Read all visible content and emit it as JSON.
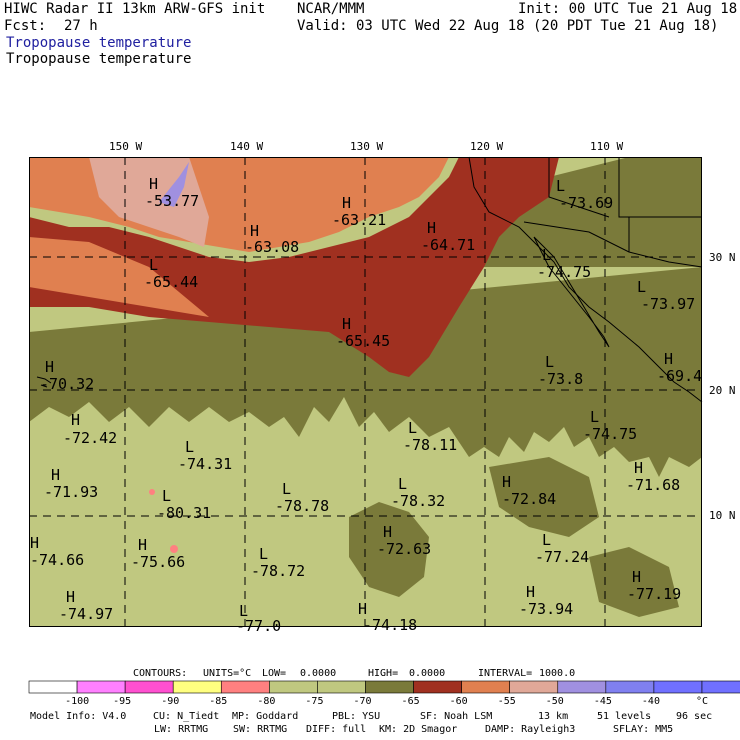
{
  "header": {
    "model_title": "HIWC Radar II 13km ARW-GFS init",
    "org": "NCAR/MMM",
    "init": "Init: 00 UTC Tue 21 Aug 18",
    "fcst_label": "Fcst:",
    "fcst_value": "27 h",
    "valid": "Valid: 03 UTC Wed 22 Aug 18 (20 PDT Tue 21 Aug 18)",
    "field_title_1": "Tropopause temperature",
    "field_title_2": "Tropopause temperature"
  },
  "map": {
    "lon_labels": [
      "150 W",
      "140 W",
      "130 W",
      "120 W",
      "110 W"
    ],
    "lat_labels": [
      "30 N",
      "20 N",
      "10 N"
    ],
    "extremes": [
      {
        "kind": "H",
        "value": "-53.77"
      },
      {
        "kind": "H",
        "value": "-63.21"
      },
      {
        "kind": "H",
        "value": "-63.08"
      },
      {
        "kind": "H",
        "value": "-64.71"
      },
      {
        "kind": "L",
        "value": "-73.69"
      },
      {
        "kind": "L",
        "value": "-65.44"
      },
      {
        "kind": "L",
        "value": "-74.75"
      },
      {
        "kind": "L",
        "value": "-73.97"
      },
      {
        "kind": "H",
        "value": "-65.45"
      },
      {
        "kind": "H",
        "value": "-70.32"
      },
      {
        "kind": "L",
        "value": "-73.8"
      },
      {
        "kind": "H",
        "value": "-69.4"
      },
      {
        "kind": "H",
        "value": "-72.42"
      },
      {
        "kind": "L",
        "value": "-78.11"
      },
      {
        "kind": "L",
        "value": "-74.75"
      },
      {
        "kind": "L",
        "value": "-74.31"
      },
      {
        "kind": "H",
        "value": "-71.68"
      },
      {
        "kind": "H",
        "value": "-71.93"
      },
      {
        "kind": "L",
        "value": "-78.78"
      },
      {
        "kind": "L",
        "value": "-78.32"
      },
      {
        "kind": "H",
        "value": "-72.84"
      },
      {
        "kind": "L",
        "value": "-80.31"
      },
      {
        "kind": "H",
        "value": "-72.63"
      },
      {
        "kind": "H",
        "value": "-74.66"
      },
      {
        "kind": "H",
        "value": "-75.66"
      },
      {
        "kind": "L",
        "value": "-78.72"
      },
      {
        "kind": "L",
        "value": "-77.24"
      },
      {
        "kind": "H",
        "value": "-77.19"
      },
      {
        "kind": "H",
        "value": "-74.97"
      },
      {
        "kind": "H",
        "value": "-73.94"
      },
      {
        "kind": "L",
        "value": "-77.0"
      },
      {
        "kind": "H",
        "value": "-74.18"
      }
    ]
  },
  "contours": {
    "label": "CONTOURS:",
    "units": "UNITS=°C",
    "low": "LOW=",
    "low_value": "0.0000",
    "high": "HIGH=",
    "high_value": "0.0000",
    "interval": "INTERVAL=",
    "interval_value": "1000.0"
  },
  "colorbar": {
    "colors": [
      "#ffffff",
      "#ff80ff",
      "#ff50d0",
      "#ffff80",
      "#ff8080",
      "#c0c880",
      "#c0c880",
      "#7a7a3a",
      "#a03020",
      "#e08050",
      "#e0a898",
      "#a090e0",
      "#8080f0",
      "#7070ff",
      "#7070ff"
    ],
    "ticks": [
      "-100",
      "-95",
      "-90",
      "-85",
      "-80",
      "-75",
      "-70",
      "-65",
      "-60",
      "-55",
      "-50",
      "-45",
      "-40"
    ],
    "unit": "°C"
  },
  "footer": {
    "line1_a": "Model Info: V4.0",
    "line1_b": "CU: N_Tiedt",
    "line1_c": "MP: Goddard",
    "line1_d": "PBL: YSU",
    "line1_e": "SF: Noah LSM",
    "line1_f": "13 km",
    "line1_g": "51 levels",
    "line1_h": "96 sec",
    "line2_a": "LW: RRTMG",
    "line2_b": "SW: RRTMG",
    "line2_c": "DIFF: full",
    "line2_d": "KM: 2D Smagor",
    "line2_e": "DAMP: Rayleigh3",
    "line2_f": "SFLAY: MM5"
  },
  "palette": {
    "pale_olive": "#c0c880",
    "olive": "#7a7a3a",
    "dark_red": "#a03020",
    "orange": "#e08050",
    "pink_beige": "#e0a898",
    "lavender": "#a090e0"
  }
}
